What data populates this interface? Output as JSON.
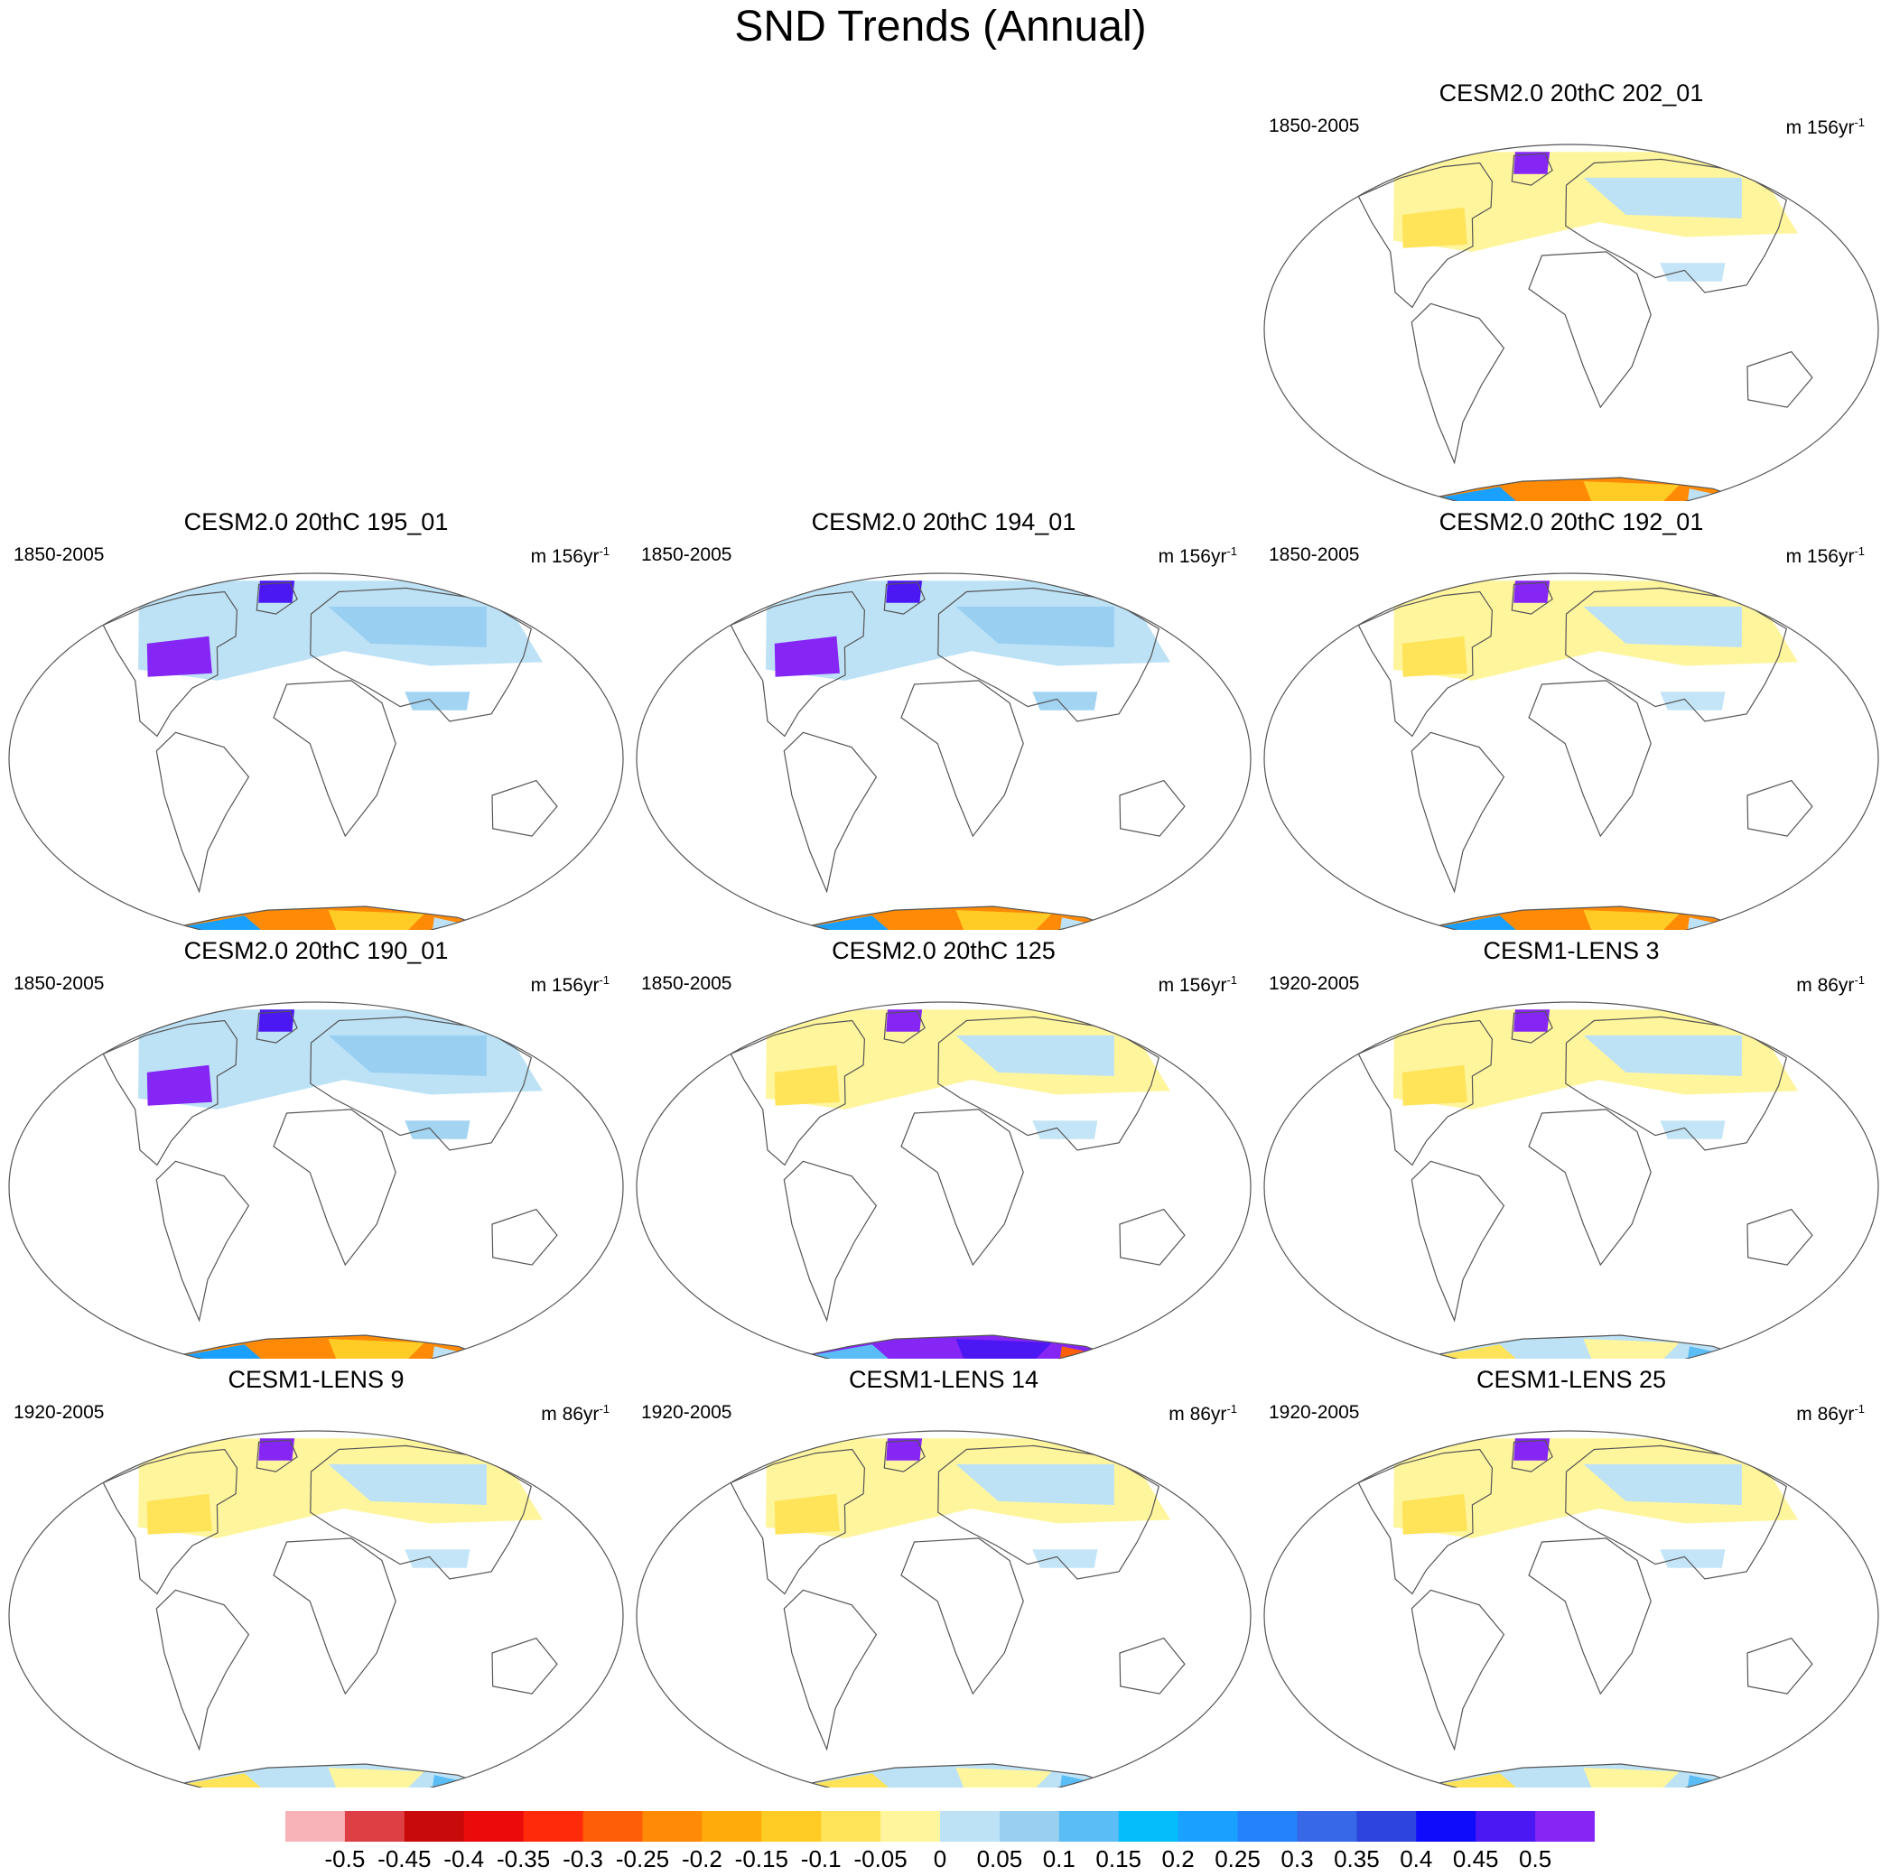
{
  "title": "SND Trends (Annual)",
  "chart_data": {
    "type": "heatmap",
    "title": "SND Trends (Annual)",
    "projection": "Robinson-like global maps",
    "panels": [
      {
        "title": "CESM2.0 20thC 202_01",
        "years": "1850-2005",
        "units": "m 156yr",
        "units_exp": "-1",
        "na": "mixed",
        "ant": "warm"
      },
      {
        "title": "CESM2.0 20thC 195_01",
        "years": "1850-2005",
        "units": "m 156yr",
        "units_exp": "-1",
        "na": "cool",
        "ant": "warm"
      },
      {
        "title": "CESM2.0 20thC 194_01",
        "years": "1850-2005",
        "units": "m 156yr",
        "units_exp": "-1",
        "na": "cool",
        "ant": "warm"
      },
      {
        "title": "CESM2.0 20thC 192_01",
        "years": "1850-2005",
        "units": "m 156yr",
        "units_exp": "-1",
        "na": "mixed",
        "ant": "warm"
      },
      {
        "title": "CESM2.0 20thC 190_01",
        "years": "1850-2005",
        "units": "m 156yr",
        "units_exp": "-1",
        "na": "cool",
        "ant": "warm"
      },
      {
        "title": "CESM2.0 20thC 125",
        "years": "1850-2005",
        "units": "m 156yr",
        "units_exp": "-1",
        "na": "mixed",
        "ant": "purple"
      },
      {
        "title": "CESM1-LENS 3",
        "years": "1920-2005",
        "units": "m 86yr",
        "units_exp": "-1",
        "na": "mixed",
        "ant": "light"
      },
      {
        "title": "CESM1-LENS 9",
        "years": "1920-2005",
        "units": "m 86yr",
        "units_exp": "-1",
        "na": "mixed",
        "ant": "light"
      },
      {
        "title": "CESM1-LENS 14",
        "years": "1920-2005",
        "units": "m 86yr",
        "units_exp": "-1",
        "na": "mixed",
        "ant": "light"
      },
      {
        "title": "CESM1-LENS 25",
        "years": "1920-2005",
        "units": "m 86yr",
        "units_exp": "-1",
        "na": "mixed",
        "ant": "light"
      }
    ],
    "colorbar": {
      "levels": [
        "-0.5",
        "-0.45",
        "-0.4",
        "-0.35",
        "-0.3",
        "-0.25",
        "-0.2",
        "-0.15",
        "-0.1",
        "-0.05",
        "0",
        "0.05",
        "0.1",
        "0.15",
        "0.2",
        "0.25",
        "0.3",
        "0.35",
        "0.4",
        "0.45",
        "0.5"
      ],
      "colors": [
        "#f7b3b7",
        "#de3f45",
        "#c80a0a",
        "#ec0b0b",
        "#ff2a0a",
        "#ff5e08",
        "#ff8a05",
        "#ffab0a",
        "#ffcc26",
        "#ffe359",
        "#fff59d",
        "#bde2f6",
        "#99cff1",
        "#5bbdf5",
        "#05bdfb",
        "#1aa1ff",
        "#2483fb",
        "#3768e8",
        "#2d45de",
        "#0f0cfb",
        "#4b17f3",
        "#8526f5"
      ]
    },
    "legend_position": "bottom"
  }
}
